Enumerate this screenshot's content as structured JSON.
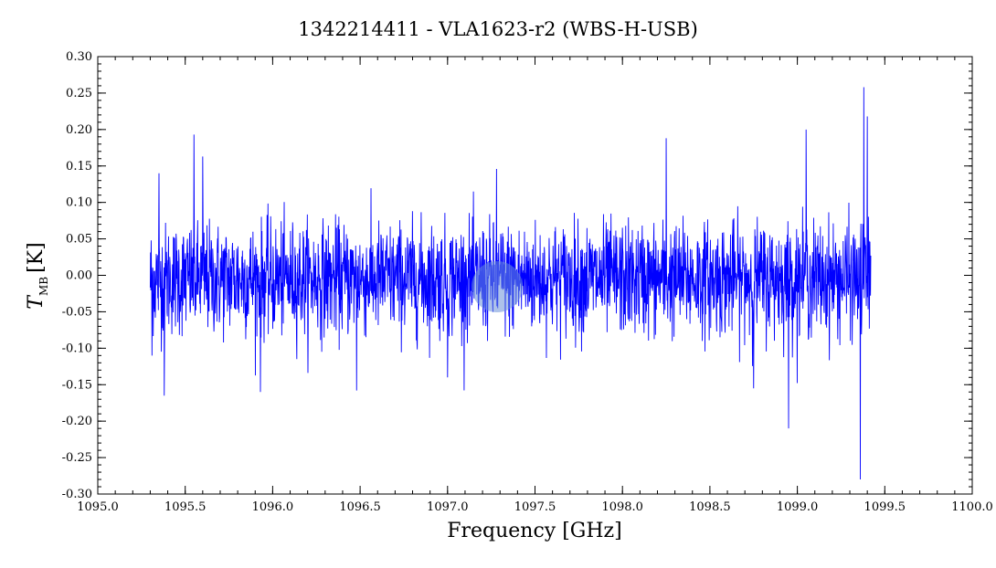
{
  "chart_data": {
    "type": "line",
    "title": "1342214411 - VLA1623-r2 (WBS-H-USB)",
    "xlabel": "Frequency [GHz]",
    "ylabel_main": "T",
    "ylabel_sub": "MB",
    "ylabel_unit": "[K]",
    "xlim": [
      1095.0,
      1100.0
    ],
    "ylim": [
      -0.3,
      0.3
    ],
    "xticks": [
      1095.0,
      1095.5,
      1096.0,
      1096.5,
      1097.0,
      1097.5,
      1098.0,
      1098.5,
      1099.0,
      1099.5,
      1100.0
    ],
    "xtick_labels": [
      "1095.0",
      "1095.5",
      "1096.0",
      "1096.5",
      "1097.0",
      "1097.5",
      "1098.0",
      "1098.5",
      "1099.0",
      "1099.5",
      "1100.0"
    ],
    "yticks": [
      -0.3,
      -0.25,
      -0.2,
      -0.15,
      -0.1,
      -0.05,
      0.0,
      0.05,
      0.1,
      0.15,
      0.2,
      0.25,
      0.3
    ],
    "ytick_labels": [
      "-0.30",
      "-0.25",
      "-0.20",
      "-0.15",
      "-0.10",
      "-0.05",
      "0.00",
      "0.05",
      "0.10",
      "0.15",
      "0.20",
      "0.25",
      "0.30"
    ],
    "grid": false,
    "series": [
      {
        "color": "#0000ff",
        "x_range": [
          1095.3,
          1099.42
        ],
        "noise_rms": 0.04,
        "x": [
          1095.31,
          1095.35,
          1095.38,
          1095.55,
          1095.6,
          1095.93,
          1096.48,
          1097.0,
          1097.28,
          1098.25,
          1098.75,
          1098.95,
          1099.05,
          1099.36,
          1099.38,
          1099.4
        ],
        "y": [
          -0.11,
          0.14,
          -0.165,
          0.193,
          0.163,
          -0.16,
          -0.158,
          -0.14,
          0.146,
          0.188,
          -0.155,
          -0.21,
          0.2,
          -0.28,
          0.258,
          0.218
        ]
      }
    ]
  },
  "colors": {
    "line": "#0000ff",
    "axes": "#000000",
    "background": "#ffffff"
  }
}
